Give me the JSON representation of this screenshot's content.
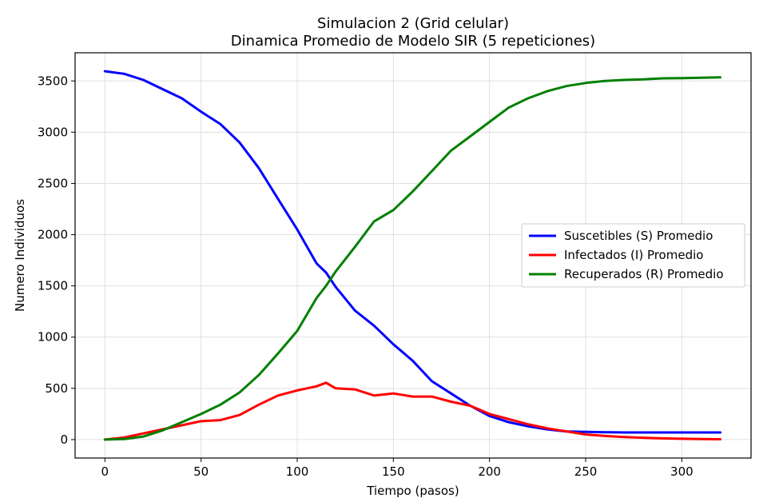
{
  "chart_data": {
    "type": "line",
    "title": "Simulacion 2 (Grid celular)",
    "subtitle": "Dinamica Promedio de Modelo SIR (5 repeticiones)",
    "xlabel": "Tiempo (pasos)",
    "ylabel": "Numero Individuos",
    "xlim": [
      -15.5,
      336
    ],
    "ylim": [
      -180,
      3775
    ],
    "xticks": [
      0,
      50,
      100,
      150,
      200,
      250,
      300
    ],
    "yticks": [
      0,
      500,
      1000,
      1500,
      2000,
      2500,
      3000,
      3500
    ],
    "grid": true,
    "legend_position": "center-right",
    "x": [
      0,
      10,
      20,
      30,
      40,
      50,
      60,
      70,
      80,
      90,
      100,
      110,
      115,
      120,
      130,
      140,
      150,
      160,
      170,
      180,
      190,
      200,
      210,
      220,
      230,
      240,
      250,
      260,
      270,
      280,
      290,
      300,
      310,
      320
    ],
    "series": [
      {
        "name": "Suscetibles (S) Promedio",
        "color": "#0000ff",
        "values": [
          3595,
          3570,
          3510,
          3420,
          3330,
          3200,
          3080,
          2900,
          2650,
          2350,
          2050,
          1720,
          1630,
          1490,
          1260,
          1110,
          930,
          770,
          570,
          450,
          330,
          230,
          170,
          130,
          100,
          80,
          75,
          72,
          70,
          70,
          70,
          70,
          70,
          70
        ]
      },
      {
        "name": "Infectados (I) Promedio",
        "color": "#ff0000",
        "values": [
          0,
          20,
          60,
          100,
          140,
          180,
          190,
          240,
          340,
          430,
          480,
          520,
          555,
          500,
          490,
          430,
          450,
          420,
          420,
          370,
          330,
          250,
          200,
          150,
          110,
          80,
          50,
          35,
          25,
          18,
          12,
          8,
          5,
          3
        ]
      },
      {
        "name": "Recuperados (R) Promedio",
        "color": "#008000",
        "values": [
          0,
          5,
          30,
          90,
          170,
          250,
          340,
          460,
          630,
          840,
          1060,
          1380,
          1500,
          1640,
          1880,
          2130,
          2240,
          2420,
          2620,
          2820,
          2960,
          3100,
          3240,
          3330,
          3400,
          3450,
          3480,
          3500,
          3510,
          3515,
          3525,
          3528,
          3532,
          3535
        ]
      }
    ]
  }
}
